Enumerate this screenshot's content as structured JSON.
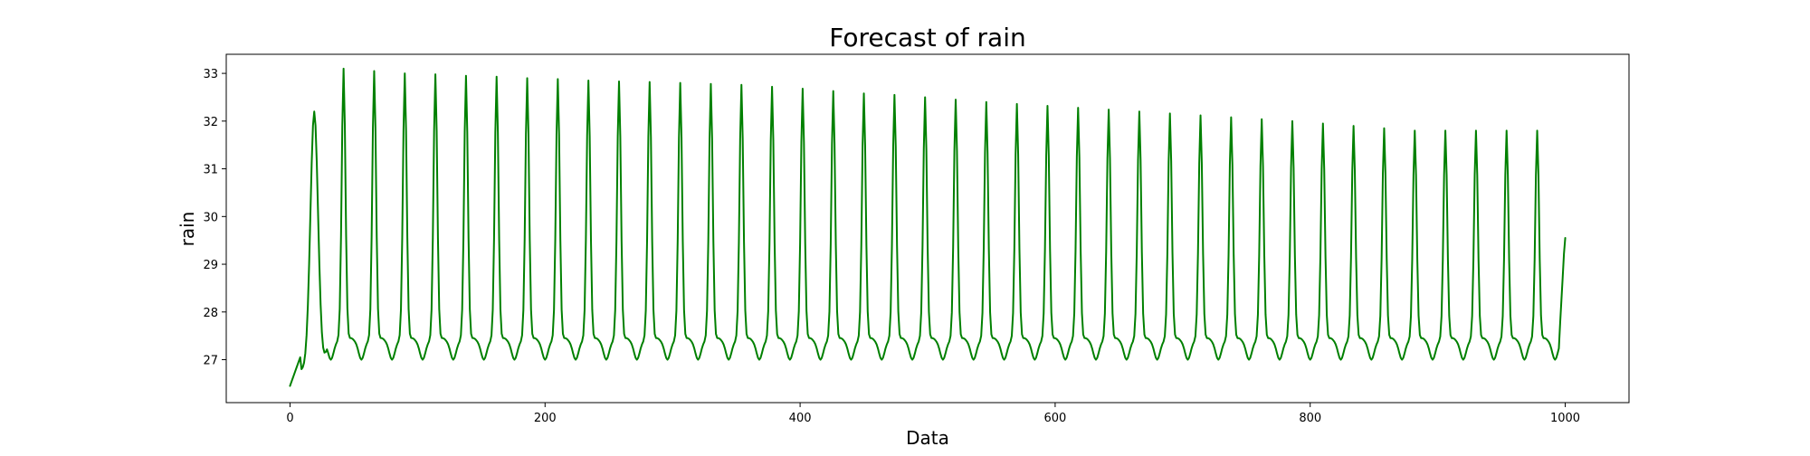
{
  "chart_data": {
    "type": "line",
    "title": "Forecast of rain",
    "xlabel": "Data",
    "ylabel": "rain",
    "xlim": [
      -50,
      1050
    ],
    "ylim": [
      26.1,
      33.4
    ],
    "x_ticks": [
      0,
      200,
      400,
      600,
      800,
      1000
    ],
    "y_ticks": [
      27,
      28,
      29,
      30,
      31,
      32,
      33
    ],
    "grid": false,
    "legend": "none",
    "line_color": "#008000",
    "series": [
      {
        "x_start": 0,
        "x_end": 1000,
        "x_step": 1,
        "start_value": 26.45,
        "first_spike": {
          "x": 19,
          "peak": 32.2
        },
        "spike_period": 24,
        "spike_peaks": [
          33.1,
          33.05,
          33.0,
          32.98,
          32.95,
          32.93,
          32.9,
          32.88,
          32.85,
          32.83,
          32.82,
          32.8,
          32.78,
          32.76,
          32.72,
          32.68,
          32.63,
          32.58,
          32.55,
          32.5,
          32.45,
          32.4,
          32.36,
          32.32,
          32.28,
          32.24,
          32.2,
          32.16,
          32.12,
          32.08,
          32.04,
          32.0,
          31.95,
          31.9,
          31.85,
          31.8
        ],
        "first_peak_x": 42,
        "trough_value": 27.0,
        "shoulder_value": 27.4,
        "end_value": 29.55
      }
    ]
  }
}
